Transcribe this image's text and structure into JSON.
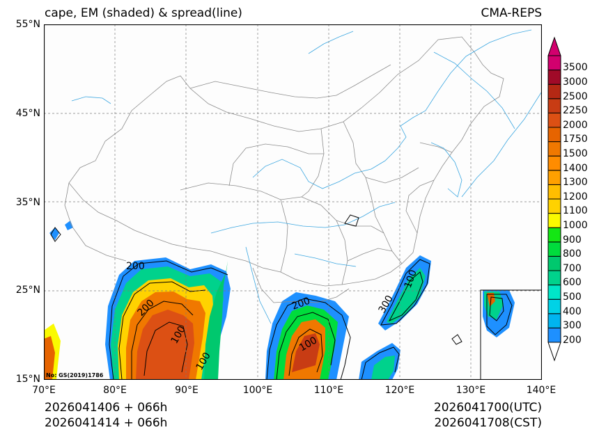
{
  "header": {
    "title_left": "cape, EM (shaded) & spread(line)",
    "title_right": "CMA-REPS"
  },
  "axes": {
    "lat_labels": [
      "55°N",
      "45°N",
      "35°N",
      "25°N",
      "15°N"
    ],
    "lon_labels": [
      "70°E",
      "80°E",
      "90°E",
      "100°E",
      "110°E",
      "120°E",
      "130°E",
      "140°E"
    ]
  },
  "footer": {
    "init_utc": "2026041406  +  066h",
    "init_cst": "2026041414  +  066h",
    "valid_utc": "2026041700(UTC)",
    "valid_cst": "2026041708(CST)"
  },
  "map": {
    "lat_range": [
      15,
      55
    ],
    "lon_range": [
      70,
      140
    ],
    "contour_labels": [
      "200",
      "100",
      "200",
      "100",
      "100",
      "300",
      "100",
      "200"
    ],
    "watermark": "No: GS(2019)1786"
  },
  "colorbar": {
    "levels": [
      "200",
      "300",
      "400",
      "500",
      "600",
      "700",
      "800",
      "900",
      "1000",
      "1100",
      "1200",
      "1300",
      "1400",
      "1500",
      "1750",
      "2000",
      "2250",
      "2500",
      "3000",
      "3500"
    ],
    "colors": [
      "#1e90ff",
      "#00b4f0",
      "#00d2e6",
      "#00e6c8",
      "#00d28c",
      "#00c86e",
      "#00dc3c",
      "#14e614",
      "#fafa00",
      "#ffd200",
      "#ffbe00",
      "#ffa000",
      "#ff8c00",
      "#f07800",
      "#e66400",
      "#dc5014",
      "#c83c14",
      "#b42814",
      "#a00a28",
      "#d2006e"
    ]
  },
  "palette": {
    "land": "#fdfdfd",
    "border": "#8c8c8c",
    "river": "#3aa6e0",
    "contour": "#000000",
    "grid": "#7a7a7a"
  }
}
